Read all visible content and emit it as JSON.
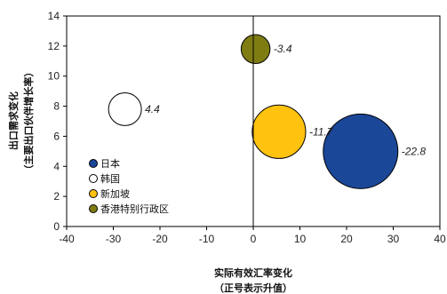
{
  "chart_data": {
    "type": "scatter",
    "xlabel": "实际有效汇率变化",
    "xlabel_sub": "（正号表示升值）",
    "ylabel": "出口需求变化",
    "ylabel_sub": "（主要出口伙伴增长率）",
    "xlim": [
      -40,
      40
    ],
    "ylim": [
      0,
      14
    ],
    "xticks": [
      "-40",
      "-30",
      "-20",
      "-10",
      "0",
      "10",
      "20",
      "30",
      "40"
    ],
    "yticks": [
      "0",
      "2",
      "4",
      "6",
      "8",
      "10",
      "12",
      "14"
    ],
    "grid": false,
    "legend_position": "bottom-left",
    "series": [
      {
        "name": "日本",
        "x": 23,
        "y": 5,
        "bubble_value": -22.8,
        "label": "-22.8",
        "color": "#1b4799"
      },
      {
        "name": "韩国",
        "x": -27.5,
        "y": 7.8,
        "bubble_value": 4.4,
        "label": "4.4",
        "color": "#ffffff"
      },
      {
        "name": "新加坡",
        "x": 5.5,
        "y": 6.3,
        "bubble_value": -11.7,
        "label": "-11.7",
        "color": "#ffc20e"
      },
      {
        "name": "香港特别行政区",
        "x": 0.5,
        "y": 11.8,
        "bubble_value": -3.4,
        "label": "-3.4",
        "color": "#7f7d12"
      }
    ]
  }
}
